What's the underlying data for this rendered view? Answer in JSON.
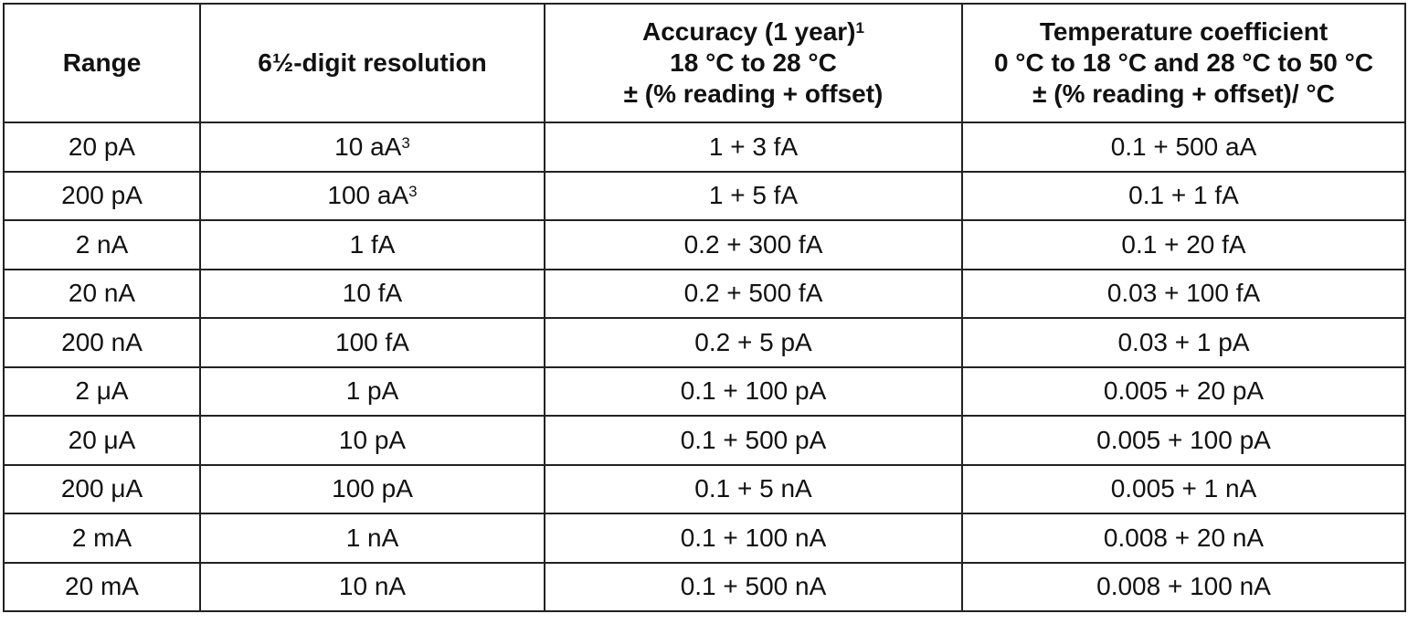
{
  "table": {
    "header": [
      [
        "Range"
      ],
      [
        "6½-digit resolution"
      ],
      [
        {
          "text": "Accuracy (1 year)",
          "sup": "1"
        },
        "18 °C to 28 °C",
        "± (% reading + offset)"
      ],
      [
        "Temperature coefficient",
        "0 °C to 18 °C and 28 °C to 50 °C",
        "± (% reading + offset)/ °C"
      ]
    ],
    "rows": [
      [
        "20 pA",
        {
          "text": "10 aA",
          "sup": "3"
        },
        "1 + 3 fA",
        "0.1 + 500 aA"
      ],
      [
        "200 pA",
        {
          "text": "100 aA",
          "sup": "3"
        },
        "1 + 5 fA",
        "0.1 + 1 fA"
      ],
      [
        "2 nA",
        "1 fA",
        "0.2 + 300 fA",
        "0.1 + 20 fA"
      ],
      [
        "20 nA",
        "10 fA",
        "0.2 + 500 fA",
        "0.03 + 100 fA"
      ],
      [
        "200 nA",
        "100 fA",
        "0.2 + 5 pA",
        "0.03 + 1 pA"
      ],
      [
        "2 μA",
        "1 pA",
        "0.1 + 100 pA",
        "0.005 + 20 pA"
      ],
      [
        "20 μA",
        "10 pA",
        "0.1 + 500 pA",
        "0.005 + 100 pA"
      ],
      [
        "200 μA",
        "100 pA",
        "0.1 + 5 nA",
        "0.005 + 1 nA"
      ],
      [
        "2 mA",
        "1 nA",
        "0.1 + 100 nA",
        "0.008 + 20 nA"
      ],
      [
        "20 mA",
        "10 nA",
        "0.1 + 500 nA",
        "0.008 + 100 nA"
      ]
    ]
  }
}
